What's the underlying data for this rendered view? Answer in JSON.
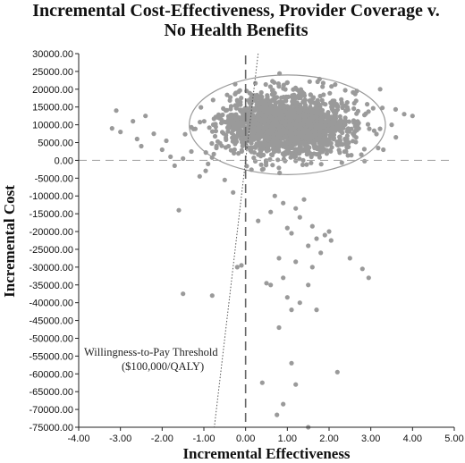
{
  "chart_data": {
    "type": "scatter",
    "title_line1": "Incremental Cost-Effectiveness, Provider Coverage v.",
    "title_line2": "No Health Benefits",
    "xlabel": "Incremental Effectiveness",
    "ylabel": "Incremental Cost",
    "xlim": [
      -4,
      5
    ],
    "ylim": [
      -75000,
      30000
    ],
    "x_ticks": [
      "-4.00",
      "-3.00",
      "-2.00",
      "-1.00",
      "0.00",
      "1.00",
      "2.00",
      "3.00",
      "4.00",
      "5.00"
    ],
    "y_ticks": [
      "30000.00",
      "25000.00",
      "20000.00",
      "15000.00",
      "10000.00",
      "5000.00",
      "0.00",
      "-5000.00",
      "-10000.00",
      "-15000.00",
      "-20000.00",
      "-25000.00",
      "-30000.00",
      "-35000.00",
      "-40000.00",
      "-45000.00",
      "-50000.00",
      "-55000.00",
      "-60000.00",
      "-65000.00",
      "-70000.00",
      "-75000.00"
    ],
    "grid": false,
    "annotation_line1": "Willingness-to-Pay Threshold",
    "annotation_line2": "($100,000/QALY)",
    "wtp_threshold_per_qaly": 100000,
    "ellipse": {
      "center": [
        1.0,
        10000
      ],
      "radius_x": 2.35,
      "radius_y": 14000
    },
    "cloud": {
      "n": 1800,
      "mean_x": 1.0,
      "sd_x": 0.75,
      "mean_y": 10000,
      "sd_y": 4400
    },
    "outliers": [
      [
        -3.1,
        14000
      ],
      [
        -3.2,
        9000
      ],
      [
        -3.0,
        8000
      ],
      [
        -2.7,
        11000
      ],
      [
        -2.6,
        6000
      ],
      [
        -2.5,
        4000
      ],
      [
        -2.4,
        12500
      ],
      [
        -2.2,
        7500
      ],
      [
        -2.0,
        3000
      ],
      [
        -1.9,
        5500
      ],
      [
        -1.8,
        1000
      ],
      [
        -1.7,
        -1500
      ],
      [
        -1.5,
        500
      ],
      [
        -1.3,
        2500
      ],
      [
        -1.1,
        -4500
      ],
      [
        -0.9,
        -1000
      ],
      [
        -0.7,
        3500
      ],
      [
        -0.5,
        -5500
      ],
      [
        -0.3,
        -9000
      ],
      [
        -1.6,
        -14000
      ],
      [
        -1.5,
        -37500
      ],
      [
        -0.8,
        -38000
      ],
      [
        -0.1,
        -29500
      ],
      [
        -0.2,
        -30000
      ],
      [
        0.7,
        -10000
      ],
      [
        0.6,
        -14500
      ],
      [
        0.3,
        -17000
      ],
      [
        0.9,
        -12000
      ],
      [
        1.0,
        -19000
      ],
      [
        1.1,
        -20500
      ],
      [
        1.2,
        -13500
      ],
      [
        1.3,
        -16000
      ],
      [
        1.4,
        -11000
      ],
      [
        1.5,
        -24000
      ],
      [
        1.6,
        -18500
      ],
      [
        1.7,
        -22000
      ],
      [
        1.8,
        -26000
      ],
      [
        1.9,
        -21000
      ],
      [
        2.0,
        -20000
      ],
      [
        2.05,
        -22500
      ],
      [
        1.6,
        -30000
      ],
      [
        1.5,
        -35000
      ],
      [
        0.9,
        -33000
      ],
      [
        1.2,
        -28500
      ],
      [
        0.5,
        -34500
      ],
      [
        0.6,
        -35000
      ],
      [
        1.0,
        -38500
      ],
      [
        1.1,
        -42000
      ],
      [
        1.7,
        -42000
      ],
      [
        1.3,
        -40000
      ],
      [
        0.8,
        -27500
      ],
      [
        2.5,
        -27500
      ],
      [
        2.8,
        -30500
      ],
      [
        2.95,
        -33000
      ],
      [
        0.8,
        -47000
      ],
      [
        1.1,
        -57000
      ],
      [
        2.2,
        -59500
      ],
      [
        0.4,
        -62500
      ],
      [
        1.2,
        -63000
      ],
      [
        0.9,
        -68500
      ],
      [
        0.75,
        -71500
      ],
      [
        1.5,
        -75000
      ],
      [
        3.3,
        3000
      ],
      [
        3.5,
        10000
      ],
      [
        3.8,
        13000
      ],
      [
        4.0,
        12500
      ],
      [
        3.6,
        6500
      ]
    ]
  }
}
